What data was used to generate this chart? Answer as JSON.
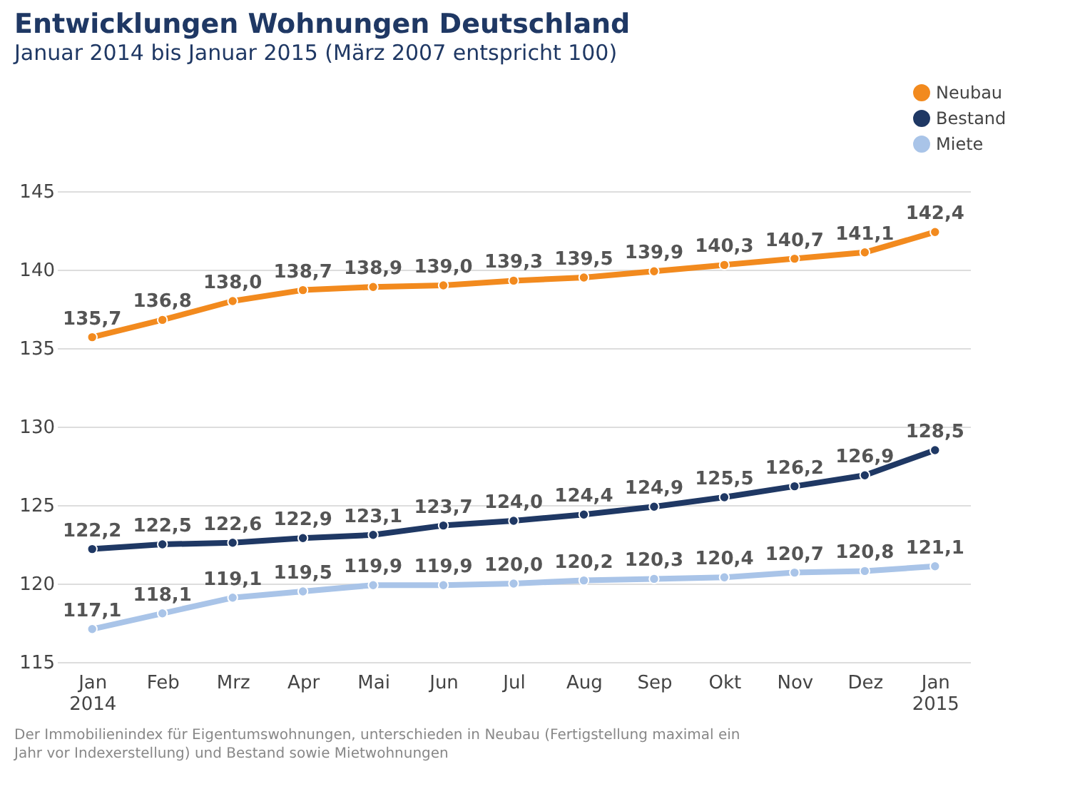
{
  "chart_data": {
    "type": "line",
    "title": "Entwicklungen Wohnungen Deutschland",
    "subtitle": "Januar 2014 bis Januar 2015 (März 2007 entspricht 100)",
    "categories": [
      "Jan\n2014",
      "Feb",
      "Mrz",
      "Apr",
      "Mai",
      "Jun",
      "Jul",
      "Aug",
      "Sep",
      "Okt",
      "Nov",
      "Dez",
      "Jan\n2015"
    ],
    "series": [
      {
        "name": "Neubau",
        "color": "#f28a1e",
        "values": [
          135.7,
          136.8,
          138.0,
          138.7,
          138.9,
          139.0,
          139.3,
          139.5,
          139.9,
          140.3,
          140.7,
          141.1,
          142.4
        ],
        "value_labels": [
          "135,7",
          "136,8",
          "138,0",
          "138,7",
          "138,9",
          "139,0",
          "139,3",
          "139,5",
          "139,9",
          "140,3",
          "140,7",
          "141,1",
          "142,4"
        ]
      },
      {
        "name": "Bestand",
        "color": "#1f3864",
        "values": [
          122.2,
          122.5,
          122.6,
          122.9,
          123.1,
          123.7,
          124.0,
          124.4,
          124.9,
          125.5,
          126.2,
          126.9,
          128.5
        ],
        "value_labels": [
          "122,2",
          "122,5",
          "122,6",
          "122,9",
          "123,1",
          "123,7",
          "124,0",
          "124,4",
          "124,9",
          "125,5",
          "126,2",
          "126,9",
          "128,5"
        ]
      },
      {
        "name": "Miete",
        "color": "#a9c4e8",
        "values": [
          117.1,
          118.1,
          119.1,
          119.5,
          119.9,
          119.9,
          120.0,
          120.2,
          120.3,
          120.4,
          120.7,
          120.8,
          121.1
        ],
        "value_labels": [
          "117,1",
          "118,1",
          "119,1",
          "119,5",
          "119,9",
          "119,9",
          "120,0",
          "120,2",
          "120,3",
          "120,4",
          "120,7",
          "120,8",
          "121,1"
        ]
      }
    ],
    "ylim": [
      115,
      145
    ],
    "yticks": [
      115,
      120,
      125,
      130,
      135,
      140,
      145
    ],
    "grid": "y",
    "legend": "top right",
    "marker": "circle",
    "line_style": "solid",
    "annotations": [
      "Der Immobilienindex für Eigentumswohnungen, unterschieden in Neubau (Fertigstellung maximal ein Jahr vor Indexerstellung) und Bestand sowie Mietwohnungen"
    ]
  }
}
